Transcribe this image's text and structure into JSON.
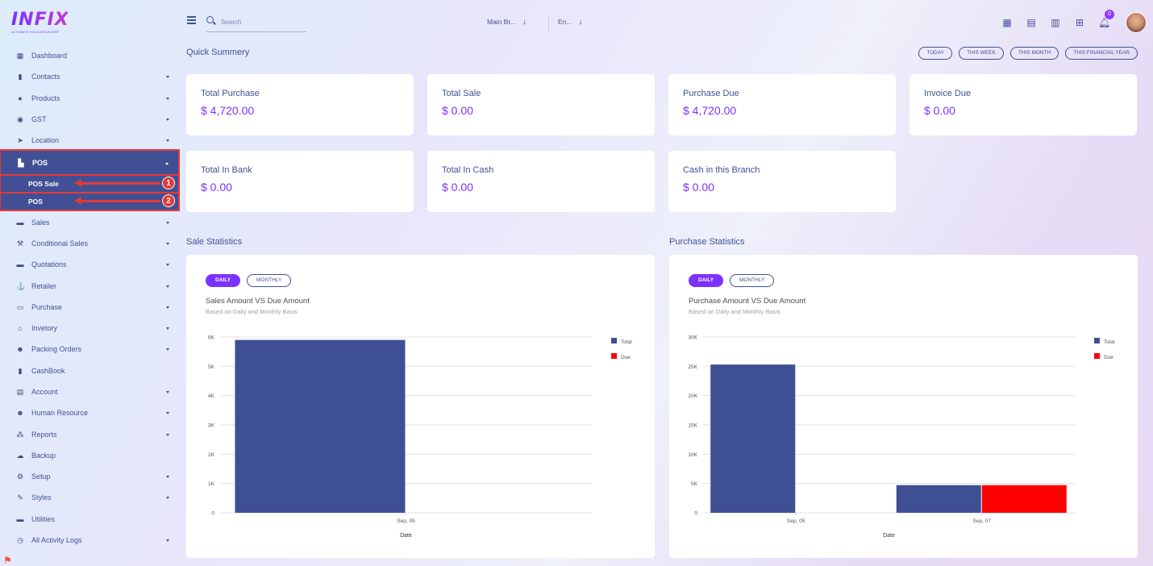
{
  "logo": {
    "text": "INFIX",
    "subtitle": "ULTIMATE EDUCATION ERP"
  },
  "sidebar": {
    "items": [
      {
        "label": "Dashboard",
        "icon": "grid-icon",
        "caret": false
      },
      {
        "label": "Contacts",
        "icon": "contacts-icon",
        "caret": true
      },
      {
        "label": "Products",
        "icon": "product-icon",
        "caret": true
      },
      {
        "label": "GST",
        "icon": "gst-icon",
        "caret": true
      },
      {
        "label": "Location",
        "icon": "location-arrow-icon",
        "caret": true
      }
    ],
    "pos": {
      "label": "POS",
      "sub_items": [
        {
          "label": "POS Sale",
          "marker": "1"
        },
        {
          "label": "POS",
          "marker": "2"
        }
      ]
    },
    "items_after": [
      {
        "label": "Sales",
        "icon": "sales-icon",
        "caret": true
      },
      {
        "label": "Conditional Sales",
        "icon": "gavel-icon",
        "caret": true
      },
      {
        "label": "Quotations",
        "icon": "quotation-icon",
        "caret": true
      },
      {
        "label": "Retailer",
        "icon": "retailer-icon",
        "caret": true
      },
      {
        "label": "Purchase",
        "icon": "purchase-icon",
        "caret": true
      },
      {
        "label": "Invetory",
        "icon": "inventory-icon",
        "caret": true
      },
      {
        "label": "Packing Orders",
        "icon": "users-icon",
        "caret": true
      },
      {
        "label": "CashBook",
        "icon": "book-icon",
        "caret": false
      },
      {
        "label": "Account",
        "icon": "account-icon",
        "caret": true
      },
      {
        "label": "Human Resource",
        "icon": "users-icon",
        "caret": true
      },
      {
        "label": "Reports",
        "icon": "reports-icon",
        "caret": true
      },
      {
        "label": "Backup",
        "icon": "cloud-icon",
        "caret": false
      },
      {
        "label": "Setup",
        "icon": "gear-icon",
        "caret": true
      },
      {
        "label": "Styles",
        "icon": "brush-icon",
        "caret": true
      },
      {
        "label": "Utilities",
        "icon": "utilities-icon",
        "caret": false
      },
      {
        "label": "All Activity Logs",
        "icon": "clock-icon",
        "caret": true
      }
    ]
  },
  "topbar": {
    "search_placeholder": "Search",
    "branch": "Main Br...",
    "language": "En...",
    "notification_count": "0"
  },
  "main": {
    "quick_summary_title": "Quick Summery",
    "ranges": [
      "TODAY",
      "THIS WEEK",
      "THIS MONTH",
      "THIS FINANCIAL YEAR"
    ],
    "cards": [
      {
        "label": "Total Purchase",
        "value": "$ 4,720.00"
      },
      {
        "label": "Total Sale",
        "value": "$ 0.00"
      },
      {
        "label": "Purchase Due",
        "value": "$ 4,720.00"
      },
      {
        "label": "Invoice Due",
        "value": "$ 0.00"
      },
      {
        "label": "Total In Bank",
        "value": "$ 0.00"
      },
      {
        "label": "Total In Cash",
        "value": "$ 0.00"
      },
      {
        "label": "Cash in this Branch",
        "value": "$ 0.00"
      }
    ],
    "sale_stats_title": "Sale Statistics",
    "purchase_stats_title": "Purchase Statistics",
    "toggle_daily": "DAILY",
    "toggle_monthly": "MONTHLY",
    "sale_chart_title": "Sales Amount VS Due Amount",
    "purchase_chart_title": "Purchase Amount VS Due Amount",
    "chart_subtitle": "Based on Daily and Monthly Basis"
  },
  "colors": {
    "total": "#3f4f93",
    "due": "#ff0000",
    "accent": "#7c32ff"
  },
  "chart_data": [
    {
      "type": "bar",
      "title": "Sales Amount VS Due Amount",
      "subtitle": "Based on Daily and Monthly Basis",
      "xlabel": "Date",
      "ylabel": "",
      "categories": [
        "Sep, 05"
      ],
      "series": [
        {
          "name": "Total",
          "values": [
            5900
          ]
        },
        {
          "name": "Due",
          "values": [
            0
          ]
        }
      ],
      "ylim": [
        0,
        6000
      ],
      "yticks": [
        0,
        1000,
        2000,
        3000,
        4000,
        5000,
        6000
      ],
      "ytick_labels": [
        "0",
        "1K",
        "2K",
        "3K",
        "4K",
        "5K",
        "6K"
      ],
      "legend": "right",
      "grid": true
    },
    {
      "type": "bar",
      "title": "Purchase Amount VS Due Amount",
      "subtitle": "Based on Daily and Monthly Basis",
      "xlabel": "Date",
      "ylabel": "",
      "categories": [
        "Sep, 05",
        "Sep, 07"
      ],
      "series": [
        {
          "name": "Total",
          "values": [
            25300,
            4720
          ]
        },
        {
          "name": "Due",
          "values": [
            0,
            4720
          ]
        }
      ],
      "ylim": [
        0,
        30000
      ],
      "yticks": [
        0,
        5000,
        10000,
        15000,
        20000,
        25000,
        30000
      ],
      "ytick_labels": [
        "0",
        "5K",
        "10K",
        "15K",
        "20K",
        "25K",
        "30K"
      ],
      "legend": "right",
      "grid": true
    }
  ]
}
